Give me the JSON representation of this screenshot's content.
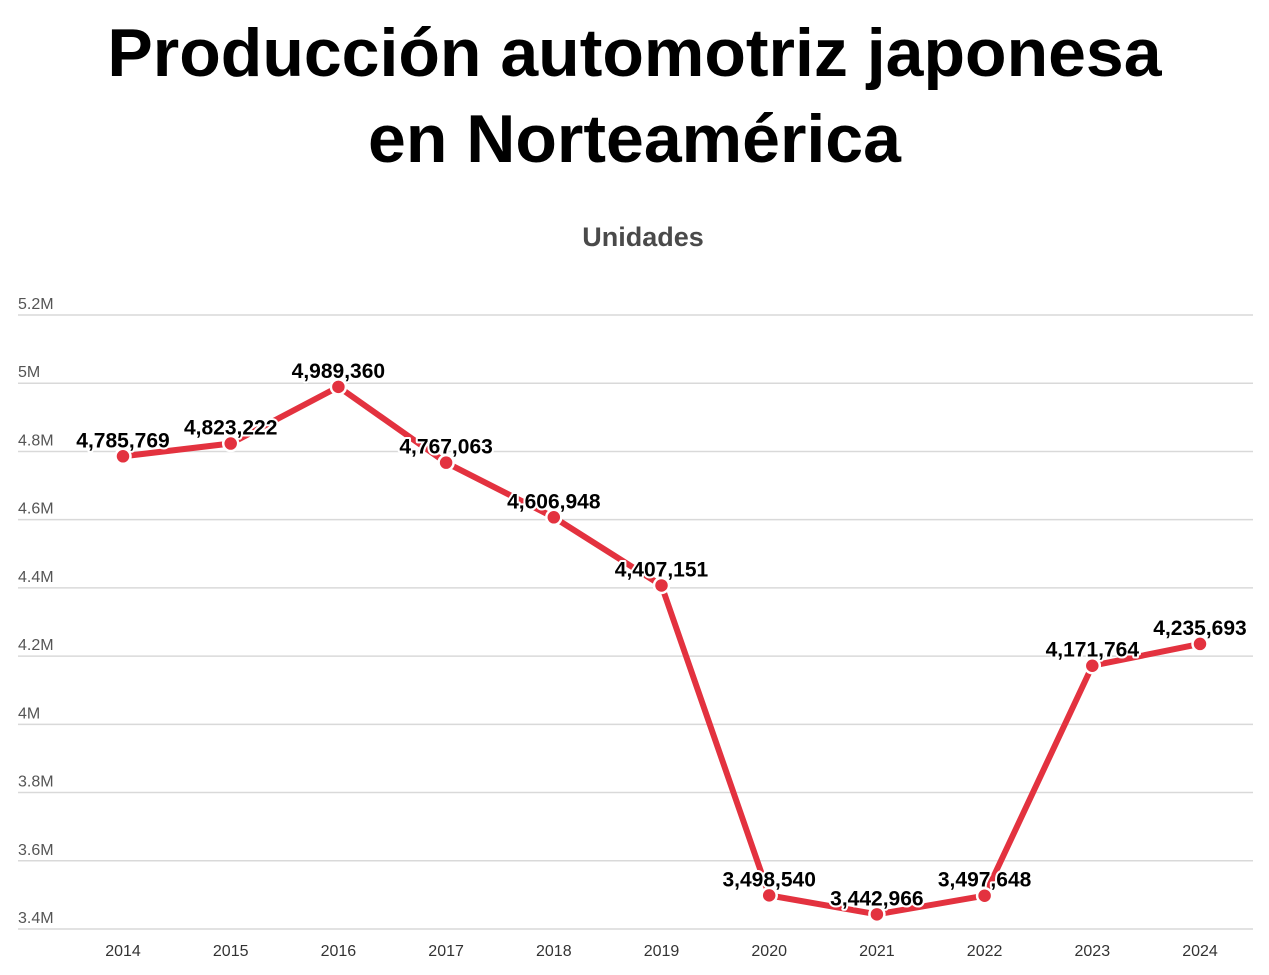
{
  "title_line1": "Producción automotriz japonesa",
  "title_line2": "en Norteamérica",
  "subtitle": "Unidades",
  "colors": {
    "line": "#e3323f",
    "grid": "#d9d9d9"
  },
  "chart_data": {
    "type": "line",
    "title": "Producción automotriz japonesa en Norteamérica",
    "subtitle": "Unidades",
    "categories": [
      "2014",
      "2015",
      "2016",
      "2017",
      "2018",
      "2019",
      "2020",
      "2021",
      "2022",
      "2023",
      "2024"
    ],
    "series": [
      {
        "values": [
          4785769,
          4823222,
          4989360,
          4767063,
          4606948,
          4407151,
          3498540,
          3442966,
          3497648,
          4171764,
          4235693
        ],
        "labels": [
          "4,785,769",
          "4,823,222",
          "4,989,360",
          "4,767,063",
          "4,606,948",
          "4,407,151",
          "3,498,540",
          "3,442,966",
          "3,497,648",
          "4,171,764",
          "4,235,693"
        ]
      }
    ],
    "ylim": [
      3400000,
      5200000
    ],
    "yticks": [
      3400000,
      3600000,
      3800000,
      4000000,
      4200000,
      4400000,
      4600000,
      4800000,
      5000000,
      5200000
    ],
    "ytick_labels": [
      "3.4M",
      "3.6M",
      "3.8M",
      "4M",
      "4.2M",
      "4.4M",
      "4.6M",
      "4.8M",
      "5M",
      "5.2M"
    ],
    "grid": true,
    "legend": "none"
  }
}
